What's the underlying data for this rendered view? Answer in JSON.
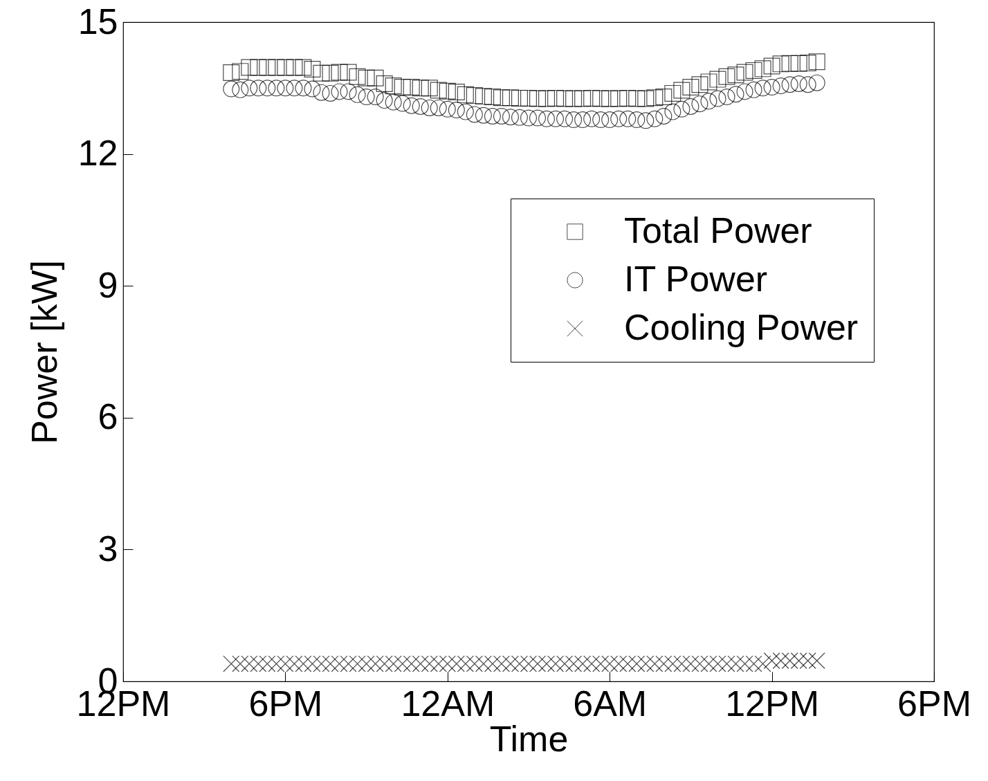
{
  "chart_data": {
    "type": "scatter",
    "xlabel": "Time",
    "ylabel": "Power [kW]",
    "x": [
      "--01-01T16:00",
      "--01-01T16:20",
      "--01-01T16:40",
      "--01-01T17:00",
      "--01-01T17:20",
      "--01-01T17:40",
      "--01-01T18:00",
      "--01-01T18:20",
      "--01-01T18:40",
      "--01-01T19:00",
      "--01-01T19:20",
      "--01-01T19:40",
      "--01-01T20:00",
      "--01-01T20:20",
      "--01-01T20:40",
      "--01-01T21:00",
      "--01-01T21:20",
      "--01-01T21:40",
      "--01-01T22:00",
      "--01-01T22:20",
      "--01-01T22:40",
      "--01-01T23:00",
      "--01-01T23:20",
      "--01-01T23:40",
      "--01-02T00:00",
      "--01-02T00:20",
      "--01-02T00:40",
      "--01-02T01:00",
      "--01-02T01:20",
      "--01-02T01:40",
      "--01-02T02:00",
      "--01-02T02:20",
      "--01-02T02:40",
      "--01-02T03:00",
      "--01-02T03:20",
      "--01-02T03:40",
      "--01-02T04:00",
      "--01-02T04:20",
      "--01-02T04:40",
      "--01-02T05:00",
      "--01-02T05:20",
      "--01-02T05:40",
      "--01-02T06:00",
      "--01-02T06:20",
      "--01-02T06:40",
      "--01-02T07:00",
      "--01-02T07:20",
      "--01-02T07:40",
      "--01-02T08:00",
      "--01-02T08:20",
      "--01-02T08:40",
      "--01-02T09:00",
      "--01-02T09:20",
      "--01-02T09:40",
      "--01-02T10:00",
      "--01-02T10:20",
      "--01-02T10:40",
      "--01-02T11:00",
      "--01-02T11:20",
      "--01-02T11:40",
      "--01-02T12:00",
      "--01-02T12:20",
      "--01-02T12:40",
      "--01-02T13:00",
      "--01-02T13:20",
      "--01-02T13:40"
    ],
    "series": [
      {
        "name": "Total Power",
        "color": "#000000",
        "marker": "square",
        "values": [
          13.85,
          13.88,
          13.97,
          13.97,
          13.97,
          13.97,
          13.97,
          13.97,
          13.97,
          13.93,
          13.84,
          13.84,
          13.86,
          13.86,
          13.76,
          13.73,
          13.73,
          13.6,
          13.55,
          13.52,
          13.52,
          13.5,
          13.5,
          13.45,
          13.43,
          13.41,
          13.35,
          13.33,
          13.31,
          13.3,
          13.28,
          13.28,
          13.27,
          13.27,
          13.26,
          13.26,
          13.27,
          13.26,
          13.26,
          13.26,
          13.27,
          13.26,
          13.26,
          13.26,
          13.27,
          13.26,
          13.26,
          13.28,
          13.3,
          13.38,
          13.45,
          13.52,
          13.58,
          13.64,
          13.7,
          13.76,
          13.8,
          13.86,
          13.9,
          13.94,
          14.0,
          14.05,
          14.06,
          14.06,
          14.07,
          14.1
        ]
      },
      {
        "name": "IT Power",
        "color": "#000000",
        "marker": "circle",
        "values": [
          13.48,
          13.46,
          13.5,
          13.5,
          13.5,
          13.5,
          13.5,
          13.5,
          13.5,
          13.48,
          13.4,
          13.38,
          13.42,
          13.42,
          13.35,
          13.3,
          13.3,
          13.22,
          13.18,
          13.15,
          13.1,
          13.08,
          13.05,
          13.05,
          13.02,
          13.0,
          12.96,
          12.9,
          12.88,
          12.86,
          12.86,
          12.84,
          12.83,
          12.82,
          12.82,
          12.8,
          12.8,
          12.8,
          12.78,
          12.78,
          12.8,
          12.78,
          12.78,
          12.8,
          12.8,
          12.78,
          12.76,
          12.8,
          12.86,
          12.96,
          13.02,
          13.08,
          13.14,
          13.2,
          13.26,
          13.3,
          13.36,
          13.42,
          13.46,
          13.5,
          13.52,
          13.55,
          13.58,
          13.6,
          13.58,
          13.62
        ]
      },
      {
        "name": "Cooling Power",
        "color": "#000000",
        "marker": "cross",
        "values": [
          0.4,
          0.4,
          0.4,
          0.4,
          0.4,
          0.4,
          0.4,
          0.4,
          0.4,
          0.4,
          0.4,
          0.4,
          0.4,
          0.4,
          0.4,
          0.4,
          0.4,
          0.4,
          0.4,
          0.4,
          0.4,
          0.4,
          0.4,
          0.4,
          0.4,
          0.4,
          0.4,
          0.4,
          0.4,
          0.4,
          0.4,
          0.4,
          0.4,
          0.4,
          0.4,
          0.4,
          0.4,
          0.4,
          0.4,
          0.4,
          0.4,
          0.4,
          0.4,
          0.4,
          0.4,
          0.4,
          0.4,
          0.4,
          0.4,
          0.4,
          0.4,
          0.4,
          0.4,
          0.4,
          0.4,
          0.4,
          0.4,
          0.4,
          0.4,
          0.4,
          0.47,
          0.47,
          0.47,
          0.47,
          0.47,
          0.47
        ]
      }
    ],
    "xlim": [
      "--01-01T12:00",
      "--01-02T18:00"
    ],
    "xticks": [
      {
        "value": "--01-01T12:00",
        "label": "12PM"
      },
      {
        "value": "--01-01T18:00",
        "label": "6PM"
      },
      {
        "value": "--01-02T00:00",
        "label": "12AM"
      },
      {
        "value": "--01-02T06:00",
        "label": "6AM"
      },
      {
        "value": "--01-02T12:00",
        "label": "12PM"
      },
      {
        "value": "--01-02T18:00",
        "label": "6PM"
      }
    ],
    "ylim": [
      0,
      15
    ],
    "yticks": [
      0,
      3,
      6,
      9,
      12,
      15
    ],
    "grid": false,
    "legend": "right"
  }
}
